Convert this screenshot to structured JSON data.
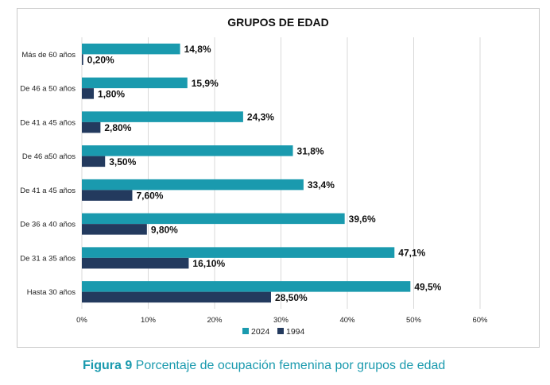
{
  "chart_data": {
    "type": "bar",
    "orientation": "horizontal",
    "title": "GRUPOS DE EDAD",
    "xlabel": "",
    "ylabel": "",
    "categories": [
      "Más de 60 años",
      "De 46 a 50 años",
      "De 41 a 45 años",
      "De 46 a50 años",
      "De 41 a 45 años",
      "De 36 a 40 años",
      "De 31 a 35 años",
      "Hasta 30 años"
    ],
    "series": [
      {
        "name": "2024",
        "color": "#1a9aae",
        "values": [
          14.8,
          15.9,
          24.3,
          31.8,
          33.4,
          39.6,
          47.1,
          49.5
        ],
        "labels": [
          "14,8%",
          "15,9%",
          "24,3%",
          "31,8%",
          "33,4%",
          "39,6%",
          "47,1%",
          "49,5%"
        ]
      },
      {
        "name": "1994",
        "color": "#233a5e",
        "values": [
          0.2,
          1.8,
          2.8,
          3.5,
          7.6,
          9.8,
          16.1,
          28.5
        ],
        "labels": [
          "0,20%",
          "1,80%",
          "2,80%",
          "3,50%",
          "7,60%",
          "9,80%",
          "16,10%",
          "28,50%"
        ]
      }
    ],
    "xlim": [
      0,
      60
    ],
    "xticks": [
      0,
      10,
      20,
      30,
      40,
      50,
      60
    ],
    "xtick_labels": [
      "0%",
      "10%",
      "20%",
      "30%",
      "40%",
      "50%",
      "60%"
    ],
    "grid": "vertical",
    "legend_position": "bottom-center"
  },
  "caption": {
    "label": "Figura 9",
    "text": " Porcentaje de ocupación femenina por grupos de edad"
  }
}
